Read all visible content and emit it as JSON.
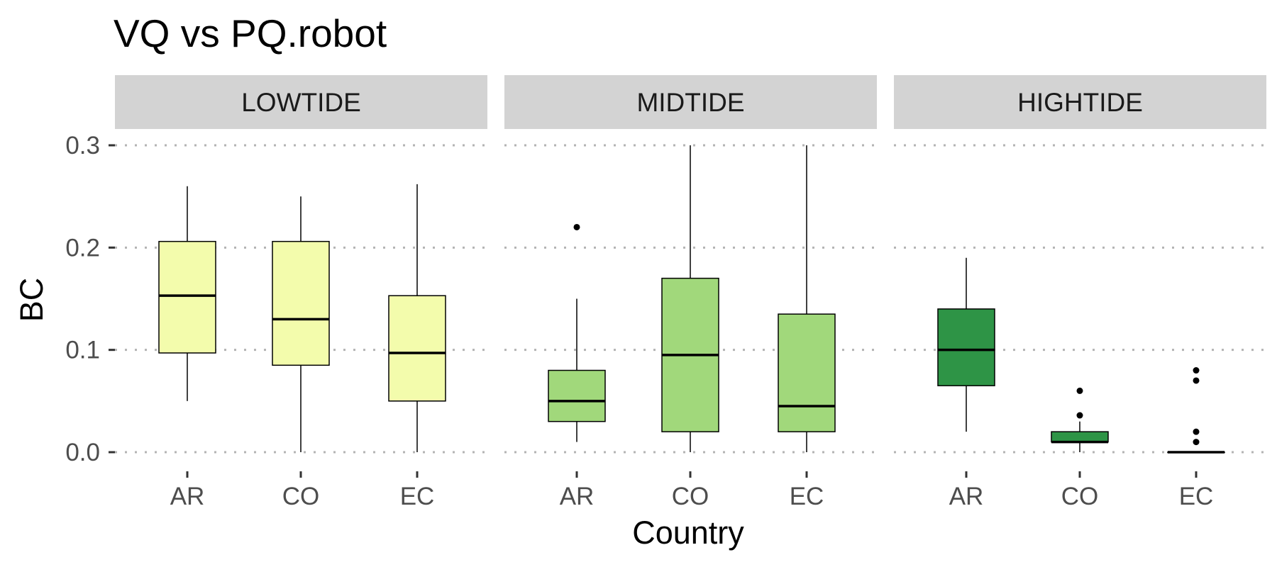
{
  "chart_data": {
    "type": "boxplot",
    "title": "VQ vs PQ.robot",
    "xlabel": "Country",
    "ylabel": "BC",
    "ylim": [
      0,
      0.3
    ],
    "yticks": [
      0.0,
      0.1,
      0.2,
      0.3
    ],
    "ytick_labels": [
      "0.0",
      "0.1",
      "0.2",
      "0.3"
    ],
    "grid": "dotted horizontal major",
    "categories": [
      "AR",
      "CO",
      "EC"
    ],
    "facets": [
      {
        "name": "LOWTIDE",
        "fill": "#f3fcac",
        "boxes": [
          {
            "category": "AR",
            "whisker_low": 0.05,
            "q1": 0.097,
            "median": 0.153,
            "q3": 0.206,
            "whisker_high": 0.26,
            "outliers": []
          },
          {
            "category": "CO",
            "whisker_low": 0.0,
            "q1": 0.085,
            "median": 0.13,
            "q3": 0.206,
            "whisker_high": 0.25,
            "outliers": []
          },
          {
            "category": "EC",
            "whisker_low": 0.0,
            "q1": 0.05,
            "median": 0.097,
            "q3": 0.153,
            "whisker_high": 0.262,
            "outliers": []
          }
        ]
      },
      {
        "name": "MIDTIDE",
        "fill": "#a1d87b",
        "boxes": [
          {
            "category": "AR",
            "whisker_low": 0.01,
            "q1": 0.03,
            "median": 0.05,
            "q3": 0.08,
            "whisker_high": 0.15,
            "outliers": [
              0.22
            ]
          },
          {
            "category": "CO",
            "whisker_low": 0.0,
            "q1": 0.02,
            "median": 0.095,
            "q3": 0.17,
            "whisker_high": 0.3,
            "outliers": []
          },
          {
            "category": "EC",
            "whisker_low": 0.0,
            "q1": 0.02,
            "median": 0.045,
            "q3": 0.135,
            "whisker_high": 0.3,
            "outliers": []
          }
        ]
      },
      {
        "name": "HIGHTIDE",
        "fill": "#2e9446",
        "boxes": [
          {
            "category": "AR",
            "whisker_low": 0.02,
            "q1": 0.065,
            "median": 0.1,
            "q3": 0.14,
            "whisker_high": 0.19,
            "outliers": []
          },
          {
            "category": "CO",
            "whisker_low": 0.0,
            "q1": 0.01,
            "median": 0.01,
            "q3": 0.02,
            "whisker_high": 0.03,
            "outliers": [
              0.036,
              0.06
            ]
          },
          {
            "category": "EC",
            "whisker_low": 0.0,
            "q1": 0.0,
            "median": 0.0,
            "q3": 0.0,
            "whisker_high": 0.0,
            "outliers": [
              0.01,
              0.02,
              0.07,
              0.08
            ]
          }
        ]
      }
    ]
  }
}
